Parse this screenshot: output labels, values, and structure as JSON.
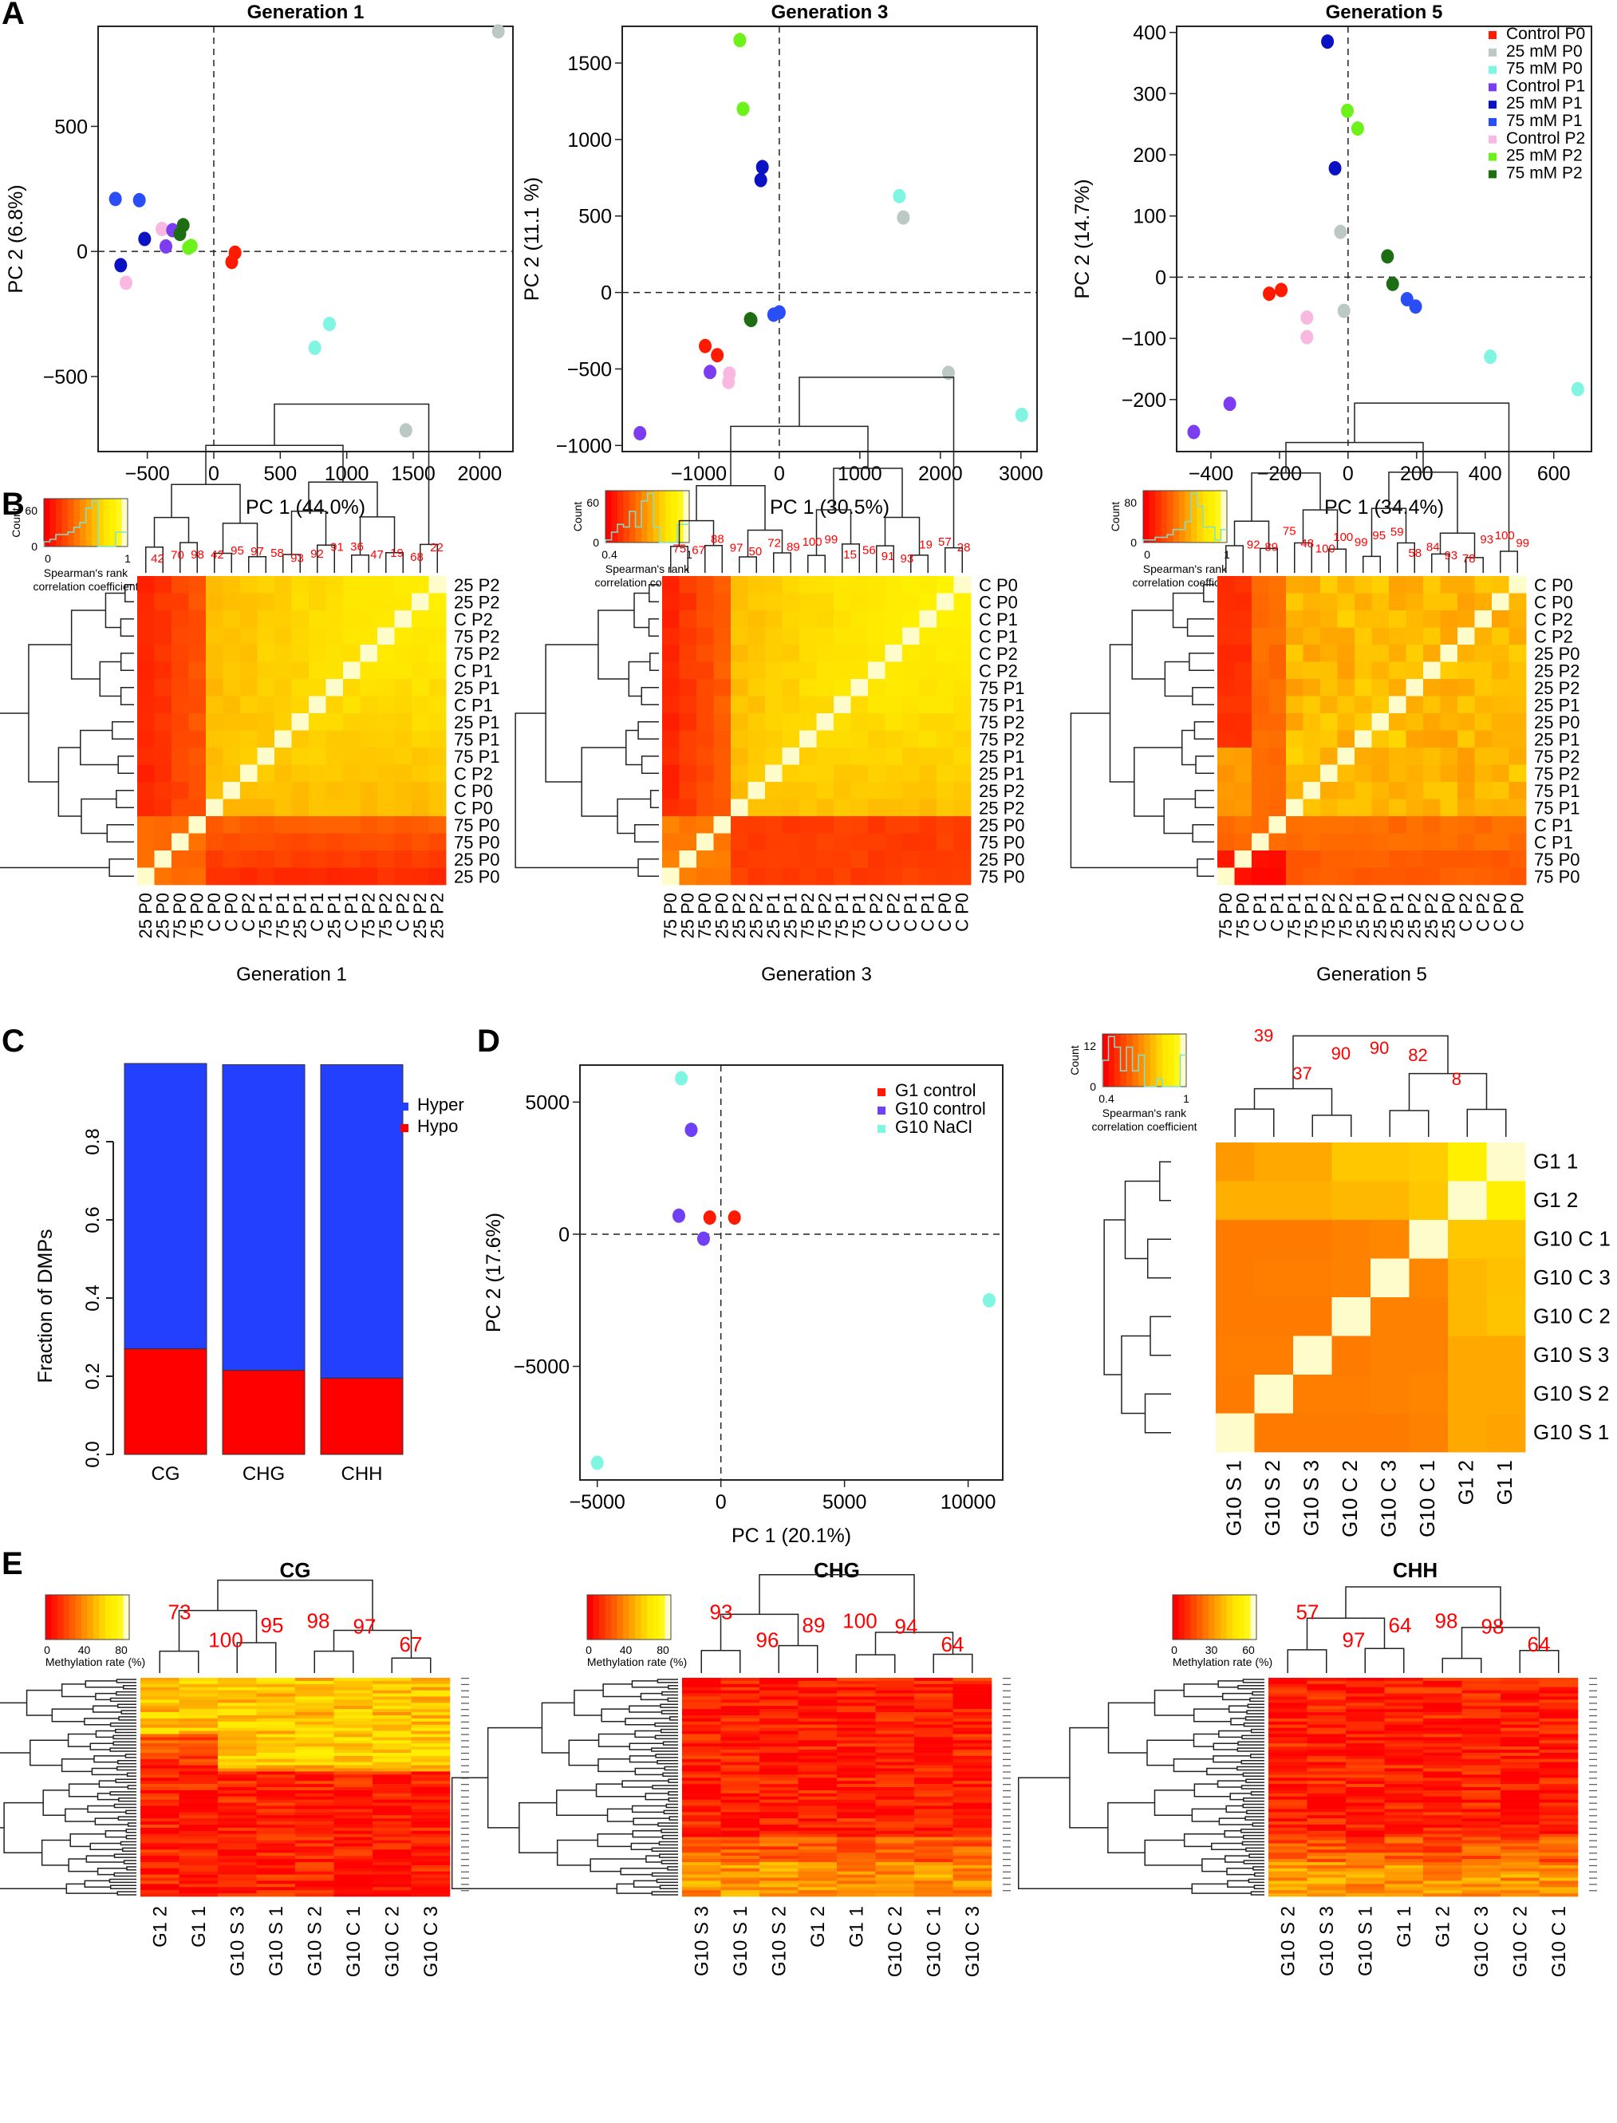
{
  "panel_labels": [
    "A",
    "B",
    "C",
    "D",
    "E"
  ],
  "colors": {
    "Control P0": "#ff1a00",
    "25 mM P0": "#bcc8c4",
    "75 mM P0": "#7ff5e2",
    "Control P1": "#7c3cf0",
    "25 mM P1": "#0b12c4",
    "75 mM P1": "#2a4ef5",
    "Control P2": "#f9b8e0",
    "25 mM P2": "#6cf21a",
    "75 mM P2": "#1d6e12",
    "G1 control": "#ff1a00",
    "G10 control": "#7040f5",
    "G10 NaCl": "#7ff5e2",
    "Hyper": "#2440ff",
    "Hypo": "#ff0000",
    "bootstrap": "#ff0000"
  },
  "chart_data": [
    {
      "id": "A1",
      "type": "scatter",
      "title": "Generation 1",
      "xlabel": "PC 1 (44.0%)",
      "ylabel": "PC 2 (6.8%)",
      "xlim": [
        -870,
        2250
      ],
      "ylim": [
        -800,
        900
      ],
      "xticks": [
        -500,
        0,
        500,
        1000,
        1500,
        2000
      ],
      "yticks": [
        -500,
        0,
        500
      ],
      "points": [
        {
          "g": "75 mM P1",
          "x": -740,
          "y": 210
        },
        {
          "g": "75 mM P1",
          "x": -560,
          "y": 205
        },
        {
          "g": "25 mM P1",
          "x": -520,
          "y": 50
        },
        {
          "g": "25 mM P1",
          "x": -700,
          "y": -55
        },
        {
          "g": "Control P2",
          "x": -390,
          "y": 90
        },
        {
          "g": "Control P2",
          "x": -660,
          "y": -125
        },
        {
          "g": "Control P1",
          "x": -310,
          "y": 85
        },
        {
          "g": "Control P1",
          "x": -360,
          "y": 20
        },
        {
          "g": "75 mM P2",
          "x": -230,
          "y": 105
        },
        {
          "g": "75 mM P2",
          "x": -255,
          "y": 70
        },
        {
          "g": "25 mM P2",
          "x": -190,
          "y": 15
        },
        {
          "g": "25 mM P2",
          "x": -170,
          "y": 22
        },
        {
          "g": "Control P0",
          "x": 160,
          "y": -5
        },
        {
          "g": "Control P0",
          "x": 135,
          "y": -42
        },
        {
          "g": "75 mM P0",
          "x": 870,
          "y": -290
        },
        {
          "g": "75 mM P0",
          "x": 760,
          "y": -385
        },
        {
          "g": "25 mM P0",
          "x": 2140,
          "y": 880
        },
        {
          "g": "25 mM P0",
          "x": 1445,
          "y": -715
        }
      ]
    },
    {
      "id": "A3",
      "type": "scatter",
      "title": "Generation 3",
      "xlabel": "PC 1 (30.5%)",
      "ylabel": "PC 2 (11.1 %)",
      "xlim": [
        -1950,
        3200
      ],
      "ylim": [
        -1040,
        1740
      ],
      "xticks": [
        -1000,
        0,
        1000,
        2000,
        3000
      ],
      "yticks": [
        -1000,
        -500,
        0,
        500,
        1000,
        1500
      ],
      "points": [
        {
          "g": "25 mM P2",
          "x": -490,
          "y": 1650
        },
        {
          "g": "25 mM P2",
          "x": -450,
          "y": 1200
        },
        {
          "g": "25 mM P1",
          "x": -210,
          "y": 820
        },
        {
          "g": "25 mM P1",
          "x": -230,
          "y": 735
        },
        {
          "g": "75 mM P0",
          "x": 1490,
          "y": 630
        },
        {
          "g": "25 mM P0",
          "x": 1540,
          "y": 490
        },
        {
          "g": "75 mM P2",
          "x": -360,
          "y": -175
        },
        {
          "g": "75 mM P2",
          "x": -350,
          "y": -180
        },
        {
          "g": "75 mM P1",
          "x": -70,
          "y": -145
        },
        {
          "g": "75 mM P1",
          "x": 0,
          "y": -130
        },
        {
          "g": "Control P0",
          "x": -920,
          "y": -350
        },
        {
          "g": "Control P0",
          "x": -770,
          "y": -410
        },
        {
          "g": "Control P1",
          "x": -860,
          "y": -520
        },
        {
          "g": "Control P1",
          "x": -1730,
          "y": -920
        },
        {
          "g": "Control P2",
          "x": -620,
          "y": -530
        },
        {
          "g": "Control P2",
          "x": -630,
          "y": -585
        },
        {
          "g": "25 mM P0",
          "x": 2100,
          "y": -525
        },
        {
          "g": "75 mM P0",
          "x": 3010,
          "y": -800
        }
      ]
    },
    {
      "id": "A5",
      "type": "scatter",
      "title": "Generation 5",
      "xlabel": "PC 1 (34.4%)",
      "ylabel": "PC 2 (14.7%)",
      "xlim": [
        -500,
        710
      ],
      "ylim": [
        -285,
        410
      ],
      "xticks": [
        -400,
        -200,
        0,
        200,
        400,
        600
      ],
      "yticks": [
        -200,
        -100,
        0,
        100,
        200,
        300,
        400
      ],
      "legend": [
        "Control P0",
        "25 mM P0",
        "75 mM P0",
        "Control P1",
        "25 mM P1",
        "75 mM P1",
        "Control P2",
        "25 mM P2",
        "75 mM P2"
      ],
      "points": [
        {
          "g": "25 mM P1",
          "x": -60,
          "y": 385
        },
        {
          "g": "25 mM P1",
          "x": -38,
          "y": 178
        },
        {
          "g": "25 mM P2",
          "x": -2,
          "y": 272
        },
        {
          "g": "25 mM P2",
          "x": 28,
          "y": 243
        },
        {
          "g": "25 mM P0",
          "x": -22,
          "y": 74
        },
        {
          "g": "25 mM P0",
          "x": -12,
          "y": -55
        },
        {
          "g": "75 mM P2",
          "x": 115,
          "y": 34
        },
        {
          "g": "75 mM P2",
          "x": 130,
          "y": -11
        },
        {
          "g": "75 mM P1",
          "x": 172,
          "y": -36
        },
        {
          "g": "75 mM P1",
          "x": 197,
          "y": -48
        },
        {
          "g": "Control P0",
          "x": -230,
          "y": -27
        },
        {
          "g": "Control P0",
          "x": -195,
          "y": -21
        },
        {
          "g": "Control P2",
          "x": -120,
          "y": -66
        },
        {
          "g": "Control P2",
          "x": -120,
          "y": -98
        },
        {
          "g": "75 mM P0",
          "x": 415,
          "y": -130
        },
        {
          "g": "75 mM P0",
          "x": 670,
          "y": -183
        },
        {
          "g": "Control P1",
          "x": -345,
          "y": -207
        },
        {
          "g": "Control P1",
          "x": -450,
          "y": -253
        }
      ]
    },
    {
      "id": "B1",
      "type": "heatmap",
      "caption": "Generation 1",
      "key_title": "Spearman's rank\ncorrelation coefficient",
      "key_ylabel": "Count",
      "key_xticks": [
        "0",
        "1"
      ],
      "key_yticks": [
        "0",
        "60"
      ],
      "col_labels": [
        "25 P0",
        "25 P0",
        "75 P0",
        "75 P0",
        "C P0",
        "C P0",
        "C P2",
        "75 P1",
        "75 P1",
        "25 P1",
        "C P1",
        "25 P1",
        "C P1",
        "75 P2",
        "75 P2",
        "C P2",
        "25 P2",
        "25 P2"
      ],
      "row_labels": [
        "25 P2",
        "25 P2",
        "C P2",
        "75 P2",
        "75 P2",
        "C P1",
        "25 P1",
        "C P1",
        "25 P1",
        "75 P1",
        "75 P1",
        "C P2",
        "C P0",
        "C P0",
        "75 P0",
        "75 P0",
        "25 P0",
        "25 P0"
      ],
      "bootstrap": [
        "42",
        "70",
        "98",
        "42",
        "95",
        "97",
        "58",
        "93",
        "92",
        "91",
        "36",
        "47",
        "19",
        "68",
        "22"
      ],
      "blocks": [
        3,
        1,
        1,
        1,
        1,
        1,
        1,
        1,
        1,
        1,
        1,
        1,
        1,
        1,
        1,
        1,
        1,
        1
      ]
    },
    {
      "id": "B3",
      "type": "heatmap",
      "caption": "Generation 3",
      "key_title": "Spearman's rank\ncorrelation coefficient",
      "key_ylabel": "Count",
      "key_xticks": [
        "0.4",
        "1"
      ],
      "key_yticks": [
        "0",
        "60"
      ],
      "col_labels": [
        "75 P0",
        "25 P0",
        "75 P0",
        "25 P0",
        "25 P2",
        "25 P2",
        "25 P1",
        "25 P1",
        "75 P2",
        "75 P2",
        "75 P1",
        "75 P1",
        "C P2",
        "C P2",
        "C P1",
        "C P1",
        "C P0",
        "C P0"
      ],
      "row_labels": [
        "C P0",
        "C P0",
        "C P1",
        "C P1",
        "C P2",
        "C P2",
        "75 P1",
        "75 P1",
        "75 P2",
        "75 P2",
        "25 P1",
        "25 P1",
        "25 P2",
        "25 P2",
        "25 P0",
        "75 P0",
        "25 P0",
        "75 P0"
      ],
      "bootstrap": [
        "75",
        "67",
        "88",
        "97",
        "50",
        "72",
        "89",
        "100",
        "99",
        "15",
        "56",
        "91",
        "93",
        "19",
        "57",
        "28"
      ]
    },
    {
      "id": "B5",
      "type": "heatmap",
      "caption": "Generation 5",
      "key_title": "Spearman's rank\ncorrelation coefficient",
      "key_ylabel": "Count",
      "key_xticks": [
        "0",
        "1"
      ],
      "key_yticks": [
        "0",
        "80"
      ],
      "col_labels": [
        "75 P0",
        "75 P0",
        "C P1",
        "C P1",
        "75 P1",
        "75 P1",
        "75 P2",
        "75 P2",
        "25 P1",
        "25 P0",
        "25 P1",
        "25 P2",
        "25 P2",
        "25 P0",
        "C P2",
        "C P2",
        "C P0",
        "C P0"
      ],
      "row_labels": [
        "C P0",
        "C P0",
        "C P2",
        "C P2",
        "25 P0",
        "25 P2",
        "25 P2",
        "25 P1",
        "25 P0",
        "25 P1",
        "75 P2",
        "75 P2",
        "75 P1",
        "75 P1",
        "C P1",
        "C P1",
        "75 P0",
        "75 P0"
      ],
      "bootstrap": [
        "92",
        "89",
        "75",
        "48",
        "100",
        "100",
        "99",
        "95",
        "59",
        "58",
        "84",
        "93",
        "78",
        "93",
        "100",
        "99"
      ]
    },
    {
      "id": "C",
      "type": "bar",
      "title": "",
      "stacked": true,
      "categories": [
        "CG",
        "CHG",
        "CHH"
      ],
      "series": [
        {
          "name": "Hypo",
          "values": [
            0.27,
            0.215,
            0.195
          ]
        },
        {
          "name": "Hyper",
          "values": [
            0.73,
            0.782,
            0.802
          ]
        }
      ],
      "legend": [
        "Hyper",
        "Hypo"
      ],
      "xlabel": "",
      "ylabel": "Fraction of DMPs",
      "ylim": [
        0,
        1.0
      ],
      "yticks": [
        "0.0",
        "0.2",
        "0.4",
        "0.6",
        "0.8"
      ]
    },
    {
      "id": "D",
      "type": "scatter",
      "title": "",
      "xlabel": "PC 1 (20.1%)",
      "ylabel": "PC 2 (17.6%)",
      "xlim": [
        -5700,
        11400
      ],
      "ylim": [
        -9300,
        6400
      ],
      "xticks": [
        -5000,
        0,
        5000,
        10000
      ],
      "yticks": [
        -5000,
        0,
        5000
      ],
      "legend": [
        "G1 control",
        "G10 control",
        "G10 NaCl"
      ],
      "points": [
        {
          "g": "G10 NaCl",
          "x": -1600,
          "y": 5900
        },
        {
          "g": "G10 control",
          "x": -1200,
          "y": 3950
        },
        {
          "g": "G10 control",
          "x": -1700,
          "y": 700
        },
        {
          "g": "G1 control",
          "x": -450,
          "y": 630
        },
        {
          "g": "G1 control",
          "x": 550,
          "y": 630
        },
        {
          "g": "G10 control",
          "x": -700,
          "y": -170
        },
        {
          "g": "G10 NaCl",
          "x": 10850,
          "y": -2500
        },
        {
          "g": "G10 NaCl",
          "x": -5000,
          "y": -8650
        }
      ]
    },
    {
      "id": "D2",
      "type": "heatmap",
      "caption": "",
      "key_title": "Spearman's rank\ncorrelation coefficient",
      "key_ylabel": "Count",
      "key_xticks": [
        "0.4",
        "1"
      ],
      "key_yticks": [
        "0",
        "12"
      ],
      "col_labels": [
        "G10 S 1",
        "G10 S 2",
        "G10 S 3",
        "G10 C 2",
        "G10 C 3",
        "G10 C 1",
        "G1 2",
        "G1 1"
      ],
      "row_labels": [
        "G1 1",
        "G1 2",
        "G10 C 1",
        "G10 C 3",
        "G10 C 2",
        "G10 S 3",
        "G10 S 2",
        "G10 S 1"
      ],
      "bootstrap": [
        "39",
        "37",
        "90",
        "90",
        "82",
        "8"
      ],
      "matrix": [
        [
          0.5,
          0.55,
          0.55,
          0.65,
          0.65,
          0.67,
          0.85,
          1.0
        ],
        [
          0.57,
          0.57,
          0.57,
          0.6,
          0.6,
          0.65,
          1.0,
          0.85
        ],
        [
          0.4,
          0.4,
          0.4,
          0.42,
          0.44,
          1.0,
          0.65,
          0.65
        ],
        [
          0.4,
          0.41,
          0.41,
          0.42,
          1.0,
          0.44,
          0.6,
          0.63
        ],
        [
          0.4,
          0.4,
          0.4,
          1.0,
          0.42,
          0.42,
          0.6,
          0.64
        ],
        [
          0.41,
          0.41,
          1.0,
          0.4,
          0.42,
          0.42,
          0.55,
          0.55
        ],
        [
          0.4,
          1.0,
          0.41,
          0.41,
          0.42,
          0.43,
          0.55,
          0.55
        ],
        [
          1.0,
          0.4,
          0.4,
          0.4,
          0.4,
          0.42,
          0.55,
          0.53
        ]
      ]
    },
    {
      "id": "E1",
      "type": "heatmap",
      "title": "CG",
      "key_title": "Methylation rate (%)",
      "key_xticks": [
        "0",
        "40",
        "80"
      ],
      "col_labels": [
        "G1 2",
        "G1 1",
        "G10 S 3",
        "G10 S 1",
        "G10 S 2",
        "G10 C 1",
        "G10 C 2",
        "G10 C 3"
      ],
      "bootstrap": [
        "73",
        "100",
        "95",
        "98",
        "97",
        "67"
      ]
    },
    {
      "id": "E2",
      "type": "heatmap",
      "title": "CHG",
      "key_title": "Methylation rate (%)",
      "key_xticks": [
        "0",
        "40",
        "80"
      ],
      "col_labels": [
        "G10 S 3",
        "G10 S 1",
        "G10 S 2",
        "G1 2",
        "G1 1",
        "G10 C 2",
        "G10 C 1",
        "G10 C 3"
      ],
      "bootstrap": [
        "93",
        "96",
        "89",
        "100",
        "94",
        "64"
      ]
    },
    {
      "id": "E3",
      "type": "heatmap",
      "title": "CHH",
      "key_title": "Methylation rate (%)",
      "key_xticks": [
        "0",
        "30",
        "60"
      ],
      "col_labels": [
        "G10 S 2",
        "G10 S 3",
        "G10 S 1",
        "G1 1",
        "G1 2",
        "G10 C 3",
        "G10 C 2",
        "G10 C 1"
      ],
      "bootstrap": [
        "57",
        "97",
        "64",
        "98",
        "98",
        "64"
      ]
    }
  ]
}
